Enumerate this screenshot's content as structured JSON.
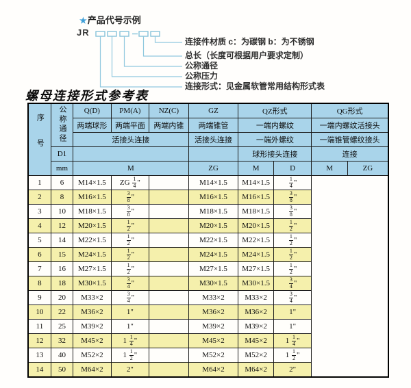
{
  "colors": {
    "header_bg": "#a9d4ea",
    "alt_row_bg": "#f5f0ac",
    "accent": "#8fc8de",
    "star": "#3f9fd8"
  },
  "diagram": {
    "star": "★",
    "title": "产品代号示例",
    "code_prefix": "JR",
    "labels": [
      "连接件材质  c：为碳钢  b：为不锈钢",
      "总长（长度可根据用户要求定制）",
      "公称通径",
      "公称压力",
      "连接形式：见金属软管常用结构形式表"
    ]
  },
  "table": {
    "title": "螺母连接形式参考表",
    "header": {
      "seq": "序号",
      "nominal_dia": "公称通径",
      "col_q": "Q(D)",
      "col_pm": "PM(A)",
      "col_nz": "NZ(C)",
      "col_gz": "GZ",
      "col_qz": "QZ形式",
      "col_qg": "QG形式",
      "q_type": "两端球形",
      "pm_type": "两端平面",
      "nz_type": "两端内锥",
      "gz_type": "两端锥管",
      "qz_type": "一端内螺纹",
      "qg_type": "一端内螺纹活接头",
      "qpn_conn": "活接头连接",
      "gz_conn": "活接头连接",
      "qz_conn2": "一端外螺纹",
      "qg_conn2": "一端锥管螺纹接头",
      "d1": "D1",
      "qz_conn3": "球形接头连接",
      "qg_conn3": "连接",
      "mm": "mm",
      "unit_m": "M",
      "unit_zg": "ZG",
      "qz_unit_m": "M",
      "qz_unit_d": "D",
      "qg_unit_m": "M",
      "qg_unit_zg": "ZG"
    },
    "rows": [
      [
        "1",
        "6",
        "M14×1.5",
        "ZG 1/4\"",
        "",
        "M14×1.5",
        "M14×1.5",
        "1/4\""
      ],
      [
        "2",
        "8",
        "M16×1.5",
        "3/8\"",
        "",
        "M16×1.5",
        "M16×1.5",
        "3/8\""
      ],
      [
        "3",
        "10",
        "M18×1.5",
        "3/8\"",
        "",
        "M18×1.5",
        "M18×1.5",
        "3/8\""
      ],
      [
        "4",
        "12",
        "M20×1.5",
        "1/2\"",
        "",
        "M20×1.5",
        "M20×1.5",
        "1/2\""
      ],
      [
        "5",
        "14",
        "M22×1.5",
        "1/2\"",
        "",
        "M22×1.5",
        "M22×1.5",
        "1/2\""
      ],
      [
        "6",
        "15",
        "M24×1.5",
        "1/2\"",
        "",
        "M24×1.5",
        "M24×1.5",
        "1/2\""
      ],
      [
        "7",
        "16",
        "M27×1.5",
        "1/2\"",
        "",
        "M27×1.5",
        "M27×1.5",
        "1/2\""
      ],
      [
        "8",
        "18",
        "M30×1.5",
        "3/4\"",
        "",
        "M30×1.5",
        "M30×1.5",
        "3/4\""
      ],
      [
        "9",
        "20",
        "M33×2",
        "3/4\"",
        "",
        "M33×2",
        "M33×2",
        "3/4\""
      ],
      [
        "10",
        "22",
        "M36×2",
        "1\"",
        "",
        "M36×2",
        "M36×2",
        "1\""
      ],
      [
        "11",
        "25",
        "M39×2",
        "1\"",
        "",
        "M39×2",
        "M39×2",
        "1\""
      ],
      [
        "12",
        "32",
        "M45×2",
        "1 1/4\"",
        "",
        "M45×2",
        "M45×2",
        "1 1/4\""
      ],
      [
        "13",
        "40",
        "M52×2",
        "1 1/2\"",
        "",
        "M52×2",
        "M52×2",
        "1 1/2\""
      ],
      [
        "14",
        "50",
        "M64×2",
        "2\"",
        "",
        "M64×2",
        "M64×2",
        "2\""
      ]
    ]
  }
}
